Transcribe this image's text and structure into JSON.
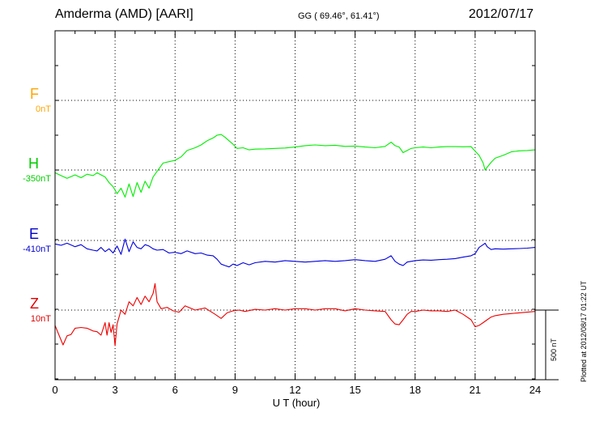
{
  "header": {
    "station": "Amderma (AMD)  [AARI]",
    "coords": "GG ( 69.46°,  61.41°)",
    "date": "2012/07/17"
  },
  "side_note": "Plotted at 2012/08/17 01:22 UT",
  "scale_label": "500 nT",
  "chart_data": {
    "type": "line",
    "xlabel": "U T (hour)",
    "xlim": [
      0,
      24
    ],
    "xticks": [
      0,
      3,
      6,
      9,
      12,
      15,
      18,
      21,
      24
    ],
    "xtick_labels": [
      "0",
      "3",
      "6",
      "9",
      "12",
      "15",
      "18",
      "21",
      "24"
    ],
    "grid": true,
    "scale_bar_nT": 500,
    "panels": [
      {
        "letter": "F",
        "baseline": "0nT",
        "color": "#FFA500",
        "baseline_value_nT": 0
      },
      {
        "letter": "H",
        "baseline": "-350nT",
        "color": "#00CC00",
        "baseline_value_nT": -350
      },
      {
        "letter": "E",
        "baseline": "-410nT",
        "color": "#0000CC",
        "baseline_value_nT": -410
      },
      {
        "letter": "Z",
        "baseline": "10nT",
        "color": "#DD0000",
        "baseline_value_nT": 10
      }
    ],
    "series": [
      {
        "name": "H",
        "color": "#00EE00",
        "x": [
          0,
          0.3,
          0.6,
          1.0,
          1.3,
          1.6,
          1.9,
          2.1,
          2.3,
          2.5,
          2.7,
          2.9,
          3.1,
          3.3,
          3.5,
          3.7,
          3.9,
          4.1,
          4.3,
          4.5,
          4.7,
          4.9,
          5.1,
          5.4,
          5.7,
          6.0,
          6.3,
          6.6,
          7.0,
          7.3,
          7.6,
          7.9,
          8.1,
          8.3,
          8.5,
          8.7,
          8.9,
          9.1,
          9.4,
          9.7,
          10.0,
          10.5,
          11.0,
          11.5,
          12.0,
          12.5,
          13.0,
          13.5,
          14.0,
          14.5,
          15.0,
          15.5,
          16.0,
          16.5,
          16.8,
          17.0,
          17.2,
          17.4,
          17.6,
          17.8,
          18.0,
          18.4,
          18.8,
          19.2,
          19.6,
          20.0,
          20.4,
          20.8,
          21.0,
          21.2,
          21.4,
          21.5,
          21.6,
          21.8,
          22.0,
          22.4,
          22.8,
          23.2,
          23.6,
          24.0
        ],
        "y": [
          -370,
          -390,
          -410,
          -385,
          -405,
          -380,
          -390,
          -370,
          -385,
          -400,
          -440,
          -470,
          -520,
          -480,
          -545,
          -450,
          -540,
          -440,
          -510,
          -430,
          -480,
          -400,
          -360,
          -300,
          -290,
          -280,
          -255,
          -210,
          -190,
          -170,
          -140,
          -120,
          -100,
          -95,
          -115,
          -140,
          -165,
          -195,
          -190,
          -205,
          -200,
          -198,
          -195,
          -192,
          -185,
          -175,
          -170,
          -175,
          -172,
          -180,
          -178,
          -185,
          -190,
          -180,
          -150,
          -175,
          -185,
          -225,
          -210,
          -195,
          -190,
          -185,
          -190,
          -185,
          -182,
          -182,
          -183,
          -182,
          -215,
          -245,
          -300,
          -350,
          -330,
          -295,
          -265,
          -245,
          -220,
          -212,
          -210,
          -205
        ]
      },
      {
        "name": "E",
        "color": "#0000DD",
        "x": [
          0,
          0.3,
          0.6,
          1.0,
          1.3,
          1.6,
          1.9,
          2.1,
          2.3,
          2.5,
          2.7,
          2.9,
          3.1,
          3.3,
          3.5,
          3.7,
          3.9,
          4.1,
          4.3,
          4.5,
          4.7,
          4.9,
          5.1,
          5.4,
          5.7,
          6.0,
          6.3,
          6.6,
          7.0,
          7.3,
          7.6,
          7.9,
          8.1,
          8.3,
          8.5,
          8.7,
          8.9,
          9.1,
          9.4,
          9.7,
          10.0,
          10.5,
          11.0,
          11.5,
          12.0,
          12.5,
          13.0,
          13.5,
          14.0,
          14.5,
          15.0,
          15.5,
          16.0,
          16.5,
          16.8,
          17.0,
          17.2,
          17.4,
          17.6,
          17.8,
          18.0,
          18.4,
          18.8,
          19.2,
          19.6,
          20.0,
          20.4,
          20.8,
          21.0,
          21.2,
          21.4,
          21.5,
          21.6,
          21.8,
          22.0,
          22.4,
          22.8,
          23.2,
          23.6,
          24.0
        ],
        "y": [
          -435,
          -445,
          -430,
          -455,
          -440,
          -470,
          -480,
          -485,
          -460,
          -490,
          -470,
          -500,
          -450,
          -510,
          -400,
          -490,
          -420,
          -460,
          -470,
          -440,
          -450,
          -470,
          -480,
          -475,
          -500,
          -495,
          -505,
          -485,
          -505,
          -500,
          -515,
          -520,
          -545,
          -580,
          -590,
          -600,
          -580,
          -590,
          -570,
          -585,
          -570,
          -560,
          -565,
          -555,
          -560,
          -565,
          -560,
          -555,
          -560,
          -555,
          -548,
          -555,
          -560,
          -545,
          -520,
          -560,
          -580,
          -590,
          -565,
          -560,
          -555,
          -550,
          -552,
          -548,
          -545,
          -540,
          -530,
          -520,
          -505,
          -460,
          -440,
          -430,
          -455,
          -475,
          -470,
          -472,
          -470,
          -468,
          -465,
          -460
        ]
      },
      {
        "name": "Z",
        "color": "#EE0000",
        "x": [
          0,
          0.2,
          0.4,
          0.6,
          0.8,
          1.0,
          1.3,
          1.6,
          1.9,
          2.1,
          2.3,
          2.5,
          2.6,
          2.7,
          2.8,
          2.9,
          3.0,
          3.1,
          3.3,
          3.5,
          3.7,
          3.9,
          4.1,
          4.3,
          4.5,
          4.7,
          4.9,
          5.0,
          5.1,
          5.3,
          5.6,
          5.9,
          6.2,
          6.5,
          7.0,
          7.5,
          8.0,
          8.3,
          8.6,
          8.9,
          9.2,
          9.5,
          10.0,
          10.5,
          11.0,
          11.5,
          12.0,
          12.5,
          13.0,
          13.5,
          14.0,
          14.5,
          15.0,
          15.5,
          16.0,
          16.5,
          16.8,
          17.0,
          17.2,
          17.4,
          17.6,
          17.8,
          18.0,
          18.4,
          18.8,
          19.2,
          19.6,
          20.0,
          20.4,
          20.8,
          21.0,
          21.2,
          21.4,
          21.6,
          21.8,
          22.0,
          22.4,
          22.8,
          23.2,
          23.6,
          24.0
        ],
        "y": [
          -100,
          -170,
          -240,
          -175,
          -165,
          -120,
          -115,
          -120,
          -140,
          -145,
          -170,
          -80,
          -170,
          -80,
          -150,
          -95,
          -245,
          -90,
          10,
          -20,
          70,
          40,
          100,
          50,
          110,
          70,
          130,
          200,
          70,
          20,
          30,
          5,
          -5,
          40,
          10,
          25,
          -20,
          -50,
          -10,
          5,
          10,
          0,
          15,
          10,
          20,
          10,
          20,
          20,
          10,
          20,
          20,
          5,
          20,
          10,
          5,
          0,
          -60,
          -90,
          -95,
          -60,
          -20,
          0,
          0,
          10,
          5,
          5,
          0,
          10,
          -20,
          -60,
          -110,
          -100,
          -80,
          -60,
          -40,
          -30,
          -20,
          -15,
          -10,
          -5,
          0
        ]
      }
    ]
  }
}
